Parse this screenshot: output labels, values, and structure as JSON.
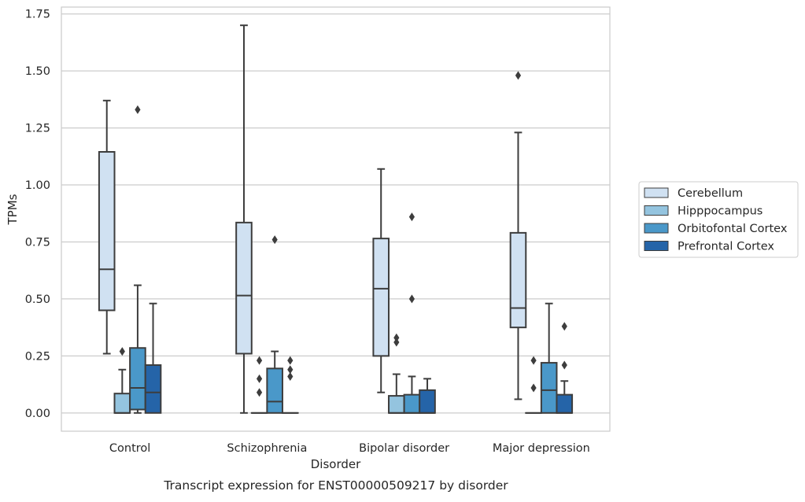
{
  "chart_data": {
    "type": "box",
    "title": "Transcript expression for ENST00000509217 by disorder",
    "xlabel": "Disorder",
    "ylabel": "TPMs",
    "categories": [
      "Control",
      "Schizophrenia",
      "Bipolar disorder",
      "Major depression"
    ],
    "ylim": [
      -0.08,
      1.78
    ],
    "yticks": [
      0.0,
      0.25,
      0.5,
      0.75,
      1.0,
      1.25,
      1.5,
      1.75
    ],
    "ytick_labels": [
      "0.00",
      "0.25",
      "0.50",
      "0.75",
      "1.00",
      "1.25",
      "1.50",
      "1.75"
    ],
    "grid": "horizontal",
    "legend_position": "right",
    "series": [
      {
        "name": "Cerebellum",
        "color": "#d0e1f2",
        "boxes": [
          {
            "q1": 0.45,
            "median": 0.63,
            "q3": 1.145,
            "whisker_low": 0.26,
            "whisker_high": 1.37,
            "outliers": []
          },
          {
            "q1": 0.26,
            "median": 0.515,
            "q3": 0.835,
            "whisker_low": 0.0,
            "whisker_high": 1.7,
            "outliers": []
          },
          {
            "q1": 0.25,
            "median": 0.545,
            "q3": 0.765,
            "whisker_low": 0.09,
            "whisker_high": 1.07,
            "outliers": []
          },
          {
            "q1": 0.375,
            "median": 0.46,
            "q3": 0.79,
            "whisker_low": 0.06,
            "whisker_high": 1.23,
            "outliers": [
              1.48
            ]
          }
        ]
      },
      {
        "name": "Hipppocampus",
        "color": "#94c4df",
        "boxes": [
          {
            "q1": 0.0,
            "median": 0.0,
            "q3": 0.085,
            "whisker_low": 0.0,
            "whisker_high": 0.19,
            "outliers": [
              0.27
            ]
          },
          {
            "q1": 0.0,
            "median": 0.0,
            "q3": 0.0,
            "whisker_low": 0.0,
            "whisker_high": 0.0,
            "outliers": [
              0.09,
              0.15,
              0.23
            ]
          },
          {
            "q1": 0.0,
            "median": 0.0,
            "q3": 0.075,
            "whisker_low": 0.0,
            "whisker_high": 0.17,
            "outliers": [
              0.31,
              0.33
            ]
          },
          {
            "q1": 0.0,
            "median": 0.0,
            "q3": 0.0,
            "whisker_low": 0.0,
            "whisker_high": 0.0,
            "outliers": [
              0.11,
              0.23
            ]
          }
        ]
      },
      {
        "name": "Orbitofontal Cortex",
        "color": "#4a98c9",
        "boxes": [
          {
            "q1": 0.015,
            "median": 0.11,
            "q3": 0.285,
            "whisker_low": 0.0,
            "whisker_high": 0.56,
            "outliers": [
              1.33
            ]
          },
          {
            "q1": 0.0,
            "median": 0.05,
            "q3": 0.195,
            "whisker_low": 0.0,
            "whisker_high": 0.27,
            "outliers": [
              0.76
            ]
          },
          {
            "q1": 0.0,
            "median": 0.0,
            "q3": 0.08,
            "whisker_low": 0.0,
            "whisker_high": 0.16,
            "outliers": [
              0.5,
              0.86
            ]
          },
          {
            "q1": 0.0,
            "median": 0.1,
            "q3": 0.22,
            "whisker_low": 0.0,
            "whisker_high": 0.48,
            "outliers": []
          }
        ]
      },
      {
        "name": "Prefrontal Cortex",
        "color": "#2564a8",
        "boxes": [
          {
            "q1": 0.0,
            "median": 0.09,
            "q3": 0.21,
            "whisker_low": 0.0,
            "whisker_high": 0.48,
            "outliers": []
          },
          {
            "q1": 0.0,
            "median": 0.0,
            "q3": 0.0,
            "whisker_low": 0.0,
            "whisker_high": 0.0,
            "outliers": [
              0.16,
              0.19,
              0.23
            ]
          },
          {
            "q1": 0.0,
            "median": 0.0,
            "q3": 0.1,
            "whisker_low": 0.0,
            "whisker_high": 0.15,
            "outliers": []
          },
          {
            "q1": 0.0,
            "median": 0.0,
            "q3": 0.08,
            "whisker_low": 0.0,
            "whisker_high": 0.14,
            "outliers": [
              0.21,
              0.38
            ]
          }
        ]
      }
    ]
  }
}
